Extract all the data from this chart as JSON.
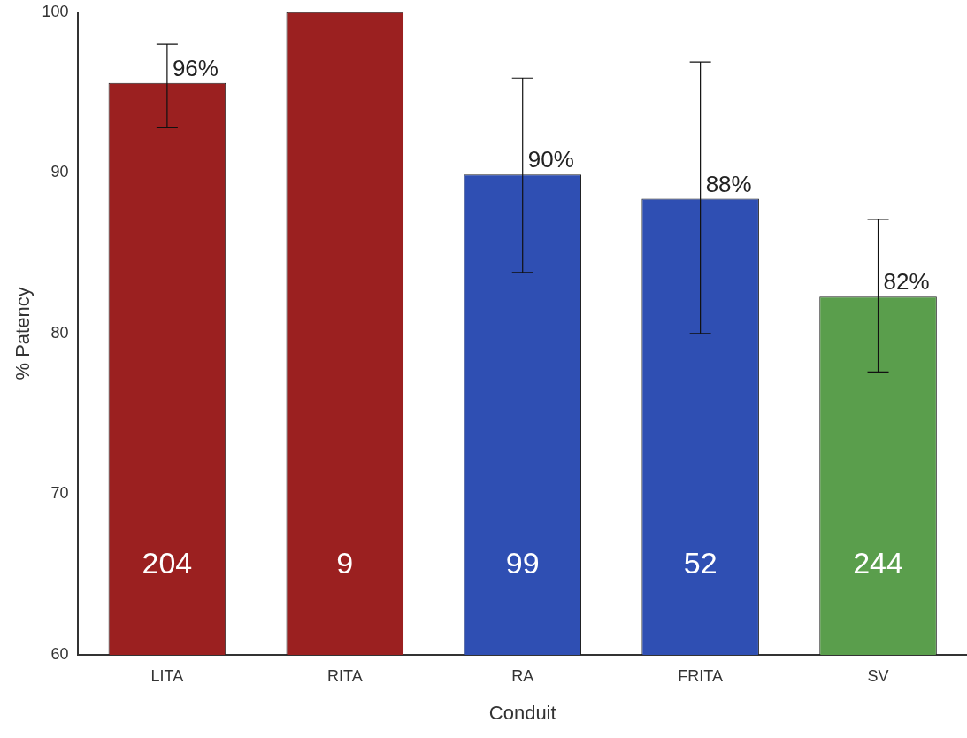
{
  "chart_data": {
    "type": "bar",
    "xlabel": "Conduit",
    "ylabel": "% Patency",
    "categories": [
      "LITA",
      "RITA",
      "RA",
      "FRITA",
      "SV"
    ],
    "values": [
      95.6,
      100,
      89.9,
      88.4,
      82.3
    ],
    "colors": [
      "#9b2020",
      "#9b2020",
      "#2f4fb3",
      "#2f4fb3",
      "#5a9e4c"
    ],
    "errors": [
      [
        92.8,
        98.0
      ],
      null,
      [
        83.8,
        95.9
      ],
      [
        80.0,
        96.9
      ],
      [
        77.6,
        87.1
      ]
    ],
    "value_labels": [
      "96%",
      null,
      "90%",
      "88%",
      "82%"
    ],
    "annotations": [
      "204",
      "9",
      "99",
      "52",
      "244"
    ],
    "ylim": [
      60,
      100
    ],
    "yticks": [
      60,
      70,
      80,
      90,
      100
    ],
    "grid": false,
    "legend": false
  }
}
